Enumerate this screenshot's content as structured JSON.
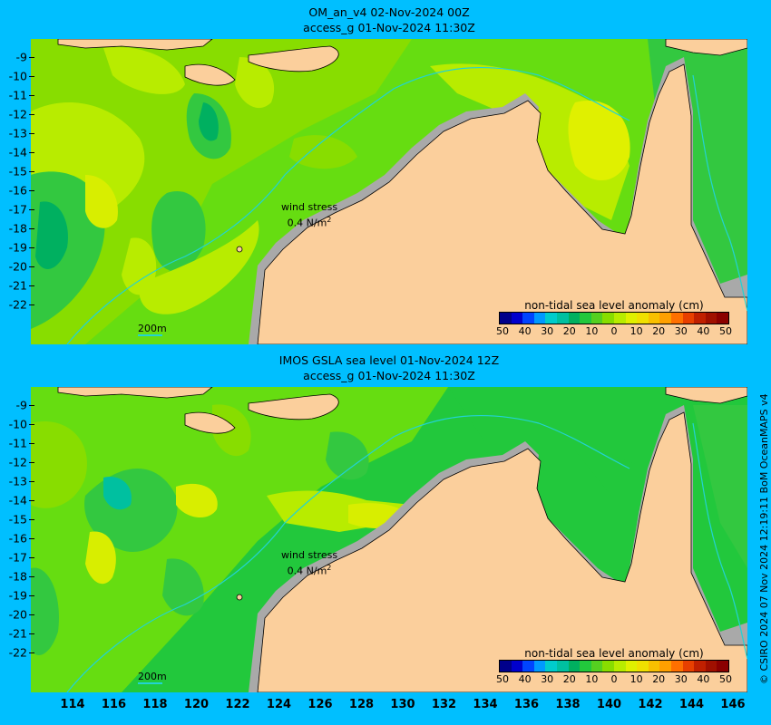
{
  "top_panel": {
    "title_line1": "OM_an_v4  02-Nov-2024 00Z",
    "title_line2": "access_g 01-Nov-2024 11:30Z",
    "wind_label": "wind stress",
    "wind_value": "0.4 N/m",
    "wind_unit_sup": "2",
    "scale_label": "200m"
  },
  "bottom_panel": {
    "title_line1": "IMOS GSLA sea level  01-Nov-2024 12Z",
    "title_line2": "access_g 01-Nov-2024 11:30Z",
    "wind_label": "wind stress",
    "wind_value": "0.4 N/m",
    "wind_unit_sup": "2",
    "scale_label": "200m"
  },
  "colorbar": {
    "title": "non-tidal sea level anomaly (cm)",
    "ticks": [
      "50",
      "40",
      "30",
      "20",
      "10",
      "0",
      "10",
      "20",
      "30",
      "40",
      "50"
    ],
    "colors": [
      "#00008b",
      "#0000cd",
      "#0044ff",
      "#0099ff",
      "#00cccc",
      "#00c0a0",
      "#00b060",
      "#22c83c",
      "#55d020",
      "#88dd00",
      "#b8ec00",
      "#e0f000",
      "#f0e000",
      "#f8c000",
      "#ffa000",
      "#ff7000",
      "#e84000",
      "#c02000",
      "#a01000",
      "#8b0000"
    ]
  },
  "y_axis_labels": [
    "-9",
    "-10",
    "-11",
    "-12",
    "-13",
    "-14",
    "-15",
    "-16",
    "-17",
    "-18",
    "-19",
    "-20",
    "-21",
    "-22"
  ],
  "x_axis_labels": [
    "114",
    "116",
    "118",
    "120",
    "122",
    "124",
    "126",
    "128",
    "130",
    "132",
    "134",
    "136",
    "138",
    "140",
    "142",
    "144",
    "146"
  ],
  "credit": "© CSIRO 2024   07 Nov 2024 12:19:11 BoM OceanMAPS v4",
  "colors": {
    "background": "#00bfff",
    "land": "#fbcf9c",
    "shelf_grey": "#a9a9a9",
    "contour_200m": "#22d3d3"
  }
}
